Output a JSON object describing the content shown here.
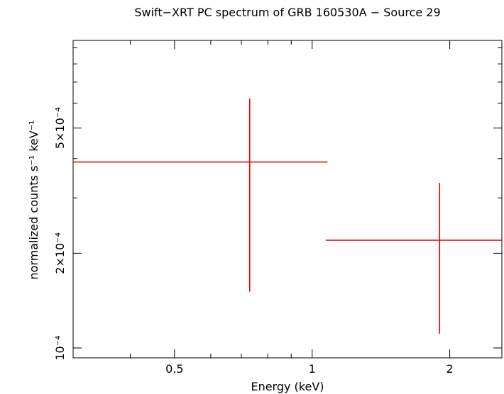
{
  "chart_data": {
    "type": "scatter",
    "title": "Swift−XRT PC spectrum of GRB 160530A − Source 29",
    "xlabel": "Energy (keV)",
    "ylabel": "normalized counts s⁻¹ keV⁻¹",
    "x_scale": "log",
    "y_scale": "log",
    "xlim": [
      0.3,
      2.6
    ],
    "ylim": [
      9.3e-05,
      0.00095
    ],
    "x_ticks": [
      {
        "value": 0.5,
        "label": "0.5"
      },
      {
        "value": 1,
        "label": "1"
      },
      {
        "value": 2,
        "label": "2"
      }
    ],
    "y_ticks": [
      {
        "value": 0.0001,
        "label": "10⁻⁴"
      },
      {
        "value": 0.0002,
        "label": "2×10⁻⁴"
      },
      {
        "value": 0.0005,
        "label": "5×10⁻⁴"
      }
    ],
    "series": [
      {
        "color": "#e00000",
        "points": [
          {
            "x": 0.73,
            "x_low": 0.3,
            "x_high": 1.08,
            "y": 0.00039,
            "y_low": 0.000151,
            "y_high": 0.00062
          },
          {
            "x": 1.9,
            "x_low": 1.07,
            "x_high": 2.6,
            "y": 0.00022,
            "y_low": 0.000111,
            "y_high": 0.000335
          }
        ]
      }
    ],
    "grid": false,
    "legend": "none"
  }
}
